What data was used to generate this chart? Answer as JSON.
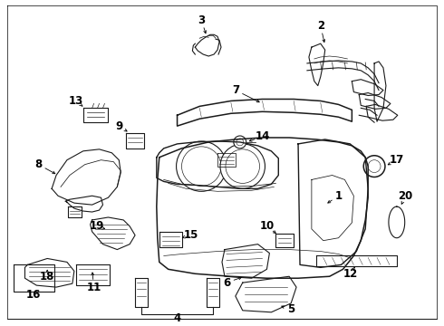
{
  "bg_color": "#ffffff",
  "line_color": "#1a1a1a",
  "fig_width": 4.9,
  "fig_height": 3.6,
  "dpi": 100,
  "border": true
}
